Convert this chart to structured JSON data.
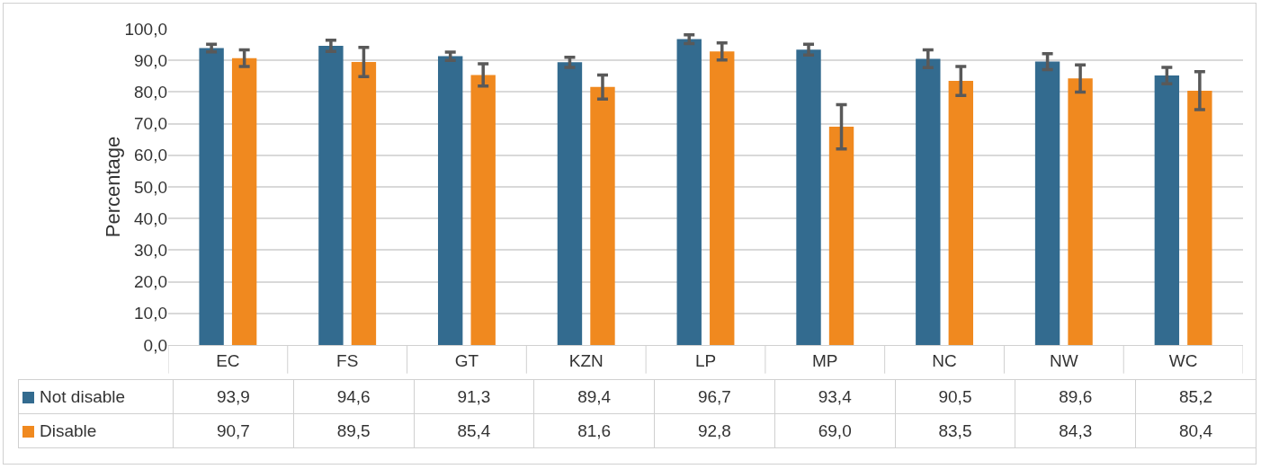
{
  "chart_data": {
    "type": "bar",
    "ylabel": "Percentage",
    "categories": [
      "EC",
      "FS",
      "GT",
      "KZN",
      "LP",
      "MP",
      "NC",
      "NW",
      "WC"
    ],
    "series": [
      {
        "name": "Not disable",
        "color": "#336b8f",
        "values": [
          93.9,
          94.6,
          91.3,
          89.4,
          96.7,
          93.4,
          90.5,
          89.6,
          85.2
        ],
        "errors": [
          1.2,
          1.8,
          1.3,
          1.6,
          1.4,
          1.7,
          2.8,
          2.5,
          2.6
        ],
        "value_labels": [
          "93,9",
          "94,6",
          "91,3",
          "89,4",
          "96,7",
          "93,4",
          "90,5",
          "89,6",
          "85,2"
        ]
      },
      {
        "name": "Disable",
        "color": "#f0891f",
        "values": [
          90.7,
          89.5,
          85.4,
          81.6,
          92.8,
          69.0,
          83.5,
          84.3,
          80.4
        ],
        "errors": [
          2.6,
          4.6,
          3.5,
          3.8,
          2.7,
          7.0,
          4.6,
          4.3,
          6.0
        ],
        "value_labels": [
          "90,7",
          "89,5",
          "85,4",
          "81,6",
          "92,8",
          "69,0",
          "83,5",
          "84,3",
          "80,4"
        ]
      }
    ],
    "ylim": [
      0,
      100
    ],
    "yticks": [
      {
        "value": 0,
        "label": "0,0"
      },
      {
        "value": 10,
        "label": "10,0"
      },
      {
        "value": 20,
        "label": "20,0"
      },
      {
        "value": 30,
        "label": "30,0"
      },
      {
        "value": 40,
        "label": "40,0"
      },
      {
        "value": 50,
        "label": "50,0"
      },
      {
        "value": 60,
        "label": "60,0"
      },
      {
        "value": 70,
        "label": "70,0"
      },
      {
        "value": 80,
        "label": "80,0"
      },
      {
        "value": 90,
        "label": "90,0"
      },
      {
        "value": 100,
        "label": "100,0"
      }
    ],
    "grid": "y",
    "legend": "bottom left"
  }
}
